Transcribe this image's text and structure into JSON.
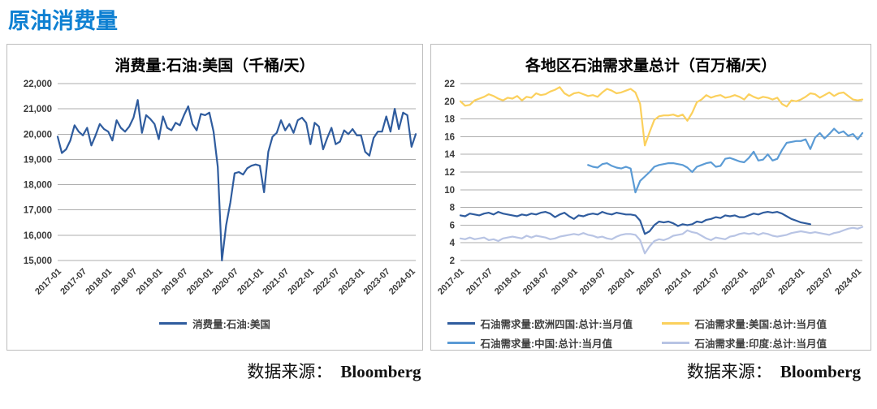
{
  "page": {
    "title": "原油消费量"
  },
  "captions": [
    {
      "label": "数据来源：",
      "value": "Bloomberg"
    },
    {
      "label": "数据来源：",
      "value": "Bloomberg"
    }
  ],
  "colors": {
    "header_blue": "#0E80D2",
    "dark_blue": "#2F5C9E",
    "gold": "#FBD05C",
    "medium_blue": "#5B9BD5",
    "light_blue": "#B8C4E4",
    "gridline": "#ADADAD",
    "tick_text": "#3A3A3A",
    "panel_border": "#BDBDBD"
  },
  "chart_data": [
    {
      "type": "line",
      "title": "消费量:石油:美国（千桶/天）",
      "x_start": "2017-01",
      "x_interval": "monthly",
      "x_tick_every": 6,
      "x_tick_labels": [
        "2017-01",
        "2017-07",
        "2018-01",
        "2018-07",
        "2019-01",
        "2019-07",
        "2020-01",
        "2020-07",
        "2021-01",
        "2021-07",
        "2022-01",
        "2022-07",
        "2023-01",
        "2023-07",
        "2024-01"
      ],
      "ylim": [
        15000,
        22000
      ],
      "ytick_step": 1000,
      "ytick_labels": [
        "22,000",
        "21,000",
        "20,000",
        "19,000",
        "18,000",
        "17,000",
        "16,000",
        "15,000"
      ],
      "grid": true,
      "legend_position": "bottom-center",
      "series": [
        {
          "name": "消费量:石油:美国",
          "color": "#2F5C9E",
          "values": [
            19900,
            19250,
            19400,
            19750,
            20350,
            20100,
            19950,
            20250,
            19550,
            19950,
            20400,
            20200,
            20100,
            19750,
            20550,
            20250,
            20100,
            20300,
            20650,
            21350,
            20050,
            20750,
            20600,
            20400,
            19800,
            20700,
            20250,
            20150,
            20450,
            20350,
            20750,
            21100,
            20400,
            20150,
            20800,
            20750,
            20850,
            20100,
            18700,
            15000,
            16400,
            17300,
            18450,
            18500,
            18400,
            18650,
            18750,
            18800,
            18750,
            17700,
            19300,
            19900,
            20050,
            20550,
            20150,
            20400,
            20050,
            20550,
            20650,
            20450,
            19600,
            20450,
            20300,
            19400,
            19850,
            20250,
            19600,
            19700,
            20150,
            20000,
            20200,
            19950,
            19950,
            19300,
            19150,
            19850,
            20100,
            20100,
            20700,
            20100,
            21000,
            20200,
            20850,
            20750,
            19500,
            20000
          ]
        }
      ]
    },
    {
      "type": "line",
      "title": "各地区石油需求量总计（百万桶/天）",
      "x_start": "2017-01",
      "x_interval": "monthly",
      "x_tick_every": 6,
      "x_tick_labels": [
        "2017-01",
        "2017-07",
        "2018-01",
        "2018-07",
        "2019-01",
        "2019-07",
        "2020-01",
        "2020-07",
        "2021-01",
        "2021-07",
        "2022-01",
        "2022-07",
        "2023-01",
        "2023-07",
        "2024-01"
      ],
      "ylim": [
        2,
        22
      ],
      "ytick_step": 2,
      "ytick_labels": [
        "22",
        "20",
        "18",
        "16",
        "14",
        "12",
        "10",
        "8",
        "6",
        "4",
        "2"
      ],
      "grid": true,
      "legend_position": "bottom-two-columns",
      "series": [
        {
          "name": "石油需求量:欧洲四国:总计:当月值",
          "color": "#2F5C9E",
          "values": [
            7.1,
            7.0,
            7.3,
            7.2,
            7.1,
            7.3,
            7.4,
            7.2,
            7.5,
            7.3,
            7.2,
            7.1,
            7.0,
            7.2,
            7.1,
            7.3,
            7.2,
            7.4,
            7.5,
            7.3,
            6.9,
            7.2,
            7.4,
            7.0,
            6.7,
            7.1,
            7.0,
            7.2,
            7.3,
            7.2,
            7.5,
            7.3,
            7.2,
            7.4,
            7.3,
            7.2,
            7.2,
            7.1,
            6.5,
            5.0,
            5.3,
            6.0,
            6.4,
            6.3,
            6.4,
            6.2,
            5.9,
            6.1,
            6.0,
            6.1,
            6.4,
            6.3,
            6.6,
            6.7,
            6.9,
            6.8,
            7.1,
            7.0,
            7.1,
            6.9,
            6.9,
            7.1,
            7.3,
            7.2,
            7.4,
            7.5,
            7.4,
            7.5,
            7.3,
            7.0,
            6.7,
            6.5,
            6.3,
            6.2,
            6.1,
            null,
            null,
            null,
            null,
            null,
            null,
            null,
            null,
            null,
            null,
            null
          ]
        },
        {
          "name": "石油需求量:美国:总计:当月值",
          "color": "#FBD05C",
          "values": [
            20.0,
            19.5,
            19.6,
            20.1,
            20.3,
            20.5,
            20.8,
            20.6,
            20.3,
            20.1,
            20.4,
            20.3,
            20.6,
            20.1,
            20.5,
            20.4,
            20.9,
            20.7,
            20.8,
            21.1,
            21.3,
            21.6,
            20.9,
            20.6,
            20.9,
            21.0,
            20.8,
            20.6,
            20.7,
            20.5,
            21.0,
            21.4,
            21.2,
            20.9,
            21.0,
            21.2,
            21.4,
            21.0,
            19.7,
            15.0,
            16.5,
            17.9,
            18.3,
            18.4,
            18.4,
            18.5,
            18.3,
            18.5,
            17.8,
            18.7,
            19.9,
            20.2,
            20.7,
            20.4,
            20.6,
            20.7,
            20.4,
            20.5,
            20.7,
            20.5,
            20.2,
            20.8,
            20.5,
            20.3,
            20.5,
            20.4,
            20.2,
            20.4,
            19.7,
            19.4,
            20.1,
            20.0,
            20.2,
            20.5,
            20.9,
            20.8,
            20.4,
            20.7,
            21.0,
            20.6,
            20.9,
            21.0,
            20.6,
            20.2,
            20.1,
            20.2
          ]
        },
        {
          "name": "石油需求量:中国:总计:当月值",
          "color": "#5B9BD5",
          "values": [
            null,
            null,
            null,
            null,
            null,
            null,
            null,
            null,
            null,
            null,
            null,
            null,
            null,
            null,
            null,
            null,
            null,
            null,
            null,
            null,
            null,
            null,
            null,
            null,
            null,
            null,
            null,
            12.8,
            12.6,
            12.5,
            12.9,
            13.0,
            12.7,
            12.5,
            12.4,
            12.6,
            12.4,
            9.7,
            11.0,
            11.5,
            12.0,
            12.6,
            12.8,
            12.9,
            13.0,
            13.0,
            12.9,
            12.8,
            12.5,
            12.0,
            12.6,
            12.8,
            13.0,
            13.1,
            12.6,
            12.7,
            13.5,
            13.6,
            13.4,
            13.2,
            13.1,
            13.6,
            14.3,
            13.3,
            13.4,
            14.0,
            13.3,
            13.5,
            14.5,
            15.3,
            15.4,
            15.5,
            15.5,
            15.7,
            14.6,
            15.9,
            16.4,
            15.8,
            16.3,
            16.9,
            16.4,
            16.6,
            16.1,
            16.3,
            15.7,
            16.4
          ]
        },
        {
          "name": "石油需求量:印度:总计:当月值",
          "color": "#B8C4E4",
          "values": [
            4.5,
            4.4,
            4.6,
            4.4,
            4.5,
            4.6,
            4.3,
            4.4,
            4.2,
            4.5,
            4.6,
            4.7,
            4.6,
            4.5,
            4.8,
            4.6,
            4.8,
            4.7,
            4.6,
            4.4,
            4.5,
            4.7,
            4.8,
            4.9,
            5.0,
            4.9,
            5.1,
            4.9,
            4.8,
            4.6,
            4.7,
            4.5,
            4.4,
            4.7,
            4.9,
            5.0,
            5.0,
            4.9,
            4.3,
            2.8,
            3.6,
            4.2,
            4.4,
            4.3,
            4.5,
            4.8,
            4.9,
            5.0,
            5.4,
            5.2,
            5.1,
            4.8,
            4.5,
            4.3,
            4.6,
            4.5,
            4.4,
            4.7,
            4.8,
            5.0,
            5.1,
            5.0,
            5.1,
            4.9,
            5.1,
            5.0,
            4.8,
            4.7,
            4.8,
            4.9,
            5.1,
            5.2,
            5.3,
            5.2,
            5.1,
            5.2,
            5.1,
            5.0,
            4.9,
            5.1,
            5.2,
            5.4,
            5.6,
            5.7,
            5.6,
            5.8
          ]
        }
      ]
    }
  ]
}
